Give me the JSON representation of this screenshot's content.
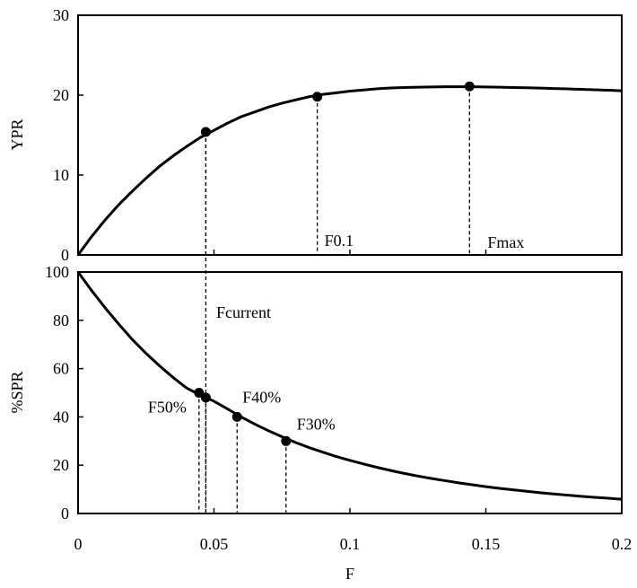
{
  "chart_data": [
    {
      "type": "line",
      "title": "",
      "xlabel": "",
      "ylabel": "YPR",
      "xlim": [
        0,
        0.2
      ],
      "ylim": [
        0,
        30
      ],
      "yticks": [
        "0",
        "10",
        "20",
        "30"
      ],
      "xticks": [
        0,
        0.05,
        0.1,
        0.15,
        0.2
      ],
      "grid": false,
      "series": [
        {
          "x": [
            0,
            0.005,
            0.01,
            0.015,
            0.02,
            0.025,
            0.03,
            0.035,
            0.04,
            0.045,
            0.05,
            0.055,
            0.06,
            0.065,
            0.07,
            0.075,
            0.08,
            0.085,
            0.09,
            0.095,
            0.1,
            0.105,
            0.11,
            0.115,
            0.12,
            0.125,
            0.13,
            0.135,
            0.14,
            0.145,
            0.15,
            0.155,
            0.16,
            0.165,
            0.17,
            0.175,
            0.18,
            0.185,
            0.19,
            0.195,
            0.2
          ],
          "y": [
            0,
            2.3,
            4.4,
            6.3,
            8.0,
            9.6,
            11.1,
            12.4,
            13.6,
            14.7,
            15.6,
            16.5,
            17.3,
            17.9,
            18.5,
            19.0,
            19.4,
            19.8,
            20.1,
            20.3,
            20.5,
            20.65,
            20.8,
            20.9,
            20.95,
            21.0,
            21.03,
            21.05,
            21.06,
            21.05,
            21.03,
            21.0,
            20.96,
            20.92,
            20.88,
            20.83,
            20.78,
            20.73,
            20.67,
            20.62,
            20.55
          ]
        }
      ],
      "points": [
        {
          "x": 0.047,
          "y": 15.4,
          "label": ""
        },
        {
          "x": 0.088,
          "y": 19.8,
          "label": "F0.1"
        },
        {
          "x": 0.144,
          "y": 21.1,
          "label": "Fmax"
        }
      ]
    },
    {
      "type": "line",
      "title": "",
      "xlabel": "F",
      "ylabel": "%SPR",
      "xlim": [
        0,
        0.2
      ],
      "ylim": [
        0,
        100
      ],
      "yticks": [
        "0",
        "20",
        "40",
        "60",
        "80",
        "100"
      ],
      "xticks": [
        "0",
        "0.05",
        "0.1",
        "0.15",
        "0.2"
      ],
      "grid": false,
      "series": [
        {
          "x": [
            0,
            0.005,
            0.01,
            0.015,
            0.02,
            0.025,
            0.03,
            0.035,
            0.04,
            0.045,
            0.05,
            0.055,
            0.06,
            0.065,
            0.07,
            0.075,
            0.08,
            0.085,
            0.09,
            0.095,
            0.1,
            0.105,
            0.11,
            0.115,
            0.12,
            0.125,
            0.13,
            0.135,
            0.14,
            0.145,
            0.15,
            0.155,
            0.16,
            0.165,
            0.17,
            0.175,
            0.18,
            0.185,
            0.19,
            0.195,
            0.2
          ],
          "y": [
            100,
            92.3,
            85.1,
            78.4,
            72.0,
            66.3,
            61.1,
            56.3,
            51.9,
            49.0,
            46.5,
            43.3,
            40.0,
            37.0,
            34.3,
            31.8,
            29.4,
            27.3,
            25.4,
            23.6,
            22.0,
            20.5,
            19.1,
            17.8,
            16.6,
            15.5,
            14.5,
            13.6,
            12.7,
            11.9,
            11.1,
            10.4,
            9.8,
            9.2,
            8.6,
            8.1,
            7.6,
            7.1,
            6.7,
            6.3,
            5.9
          ]
        }
      ],
      "points": [
        {
          "x": 0.0445,
          "y": 50,
          "label": "F50%"
        },
        {
          "x": 0.047,
          "y": 48,
          "label": ""
        },
        {
          "x": 0.0585,
          "y": 40,
          "label": "F40%"
        },
        {
          "x": 0.0765,
          "y": 30,
          "label": "F30%"
        }
      ],
      "fcurrent": {
        "x": 0.047,
        "label": "Fcurrent"
      }
    }
  ]
}
